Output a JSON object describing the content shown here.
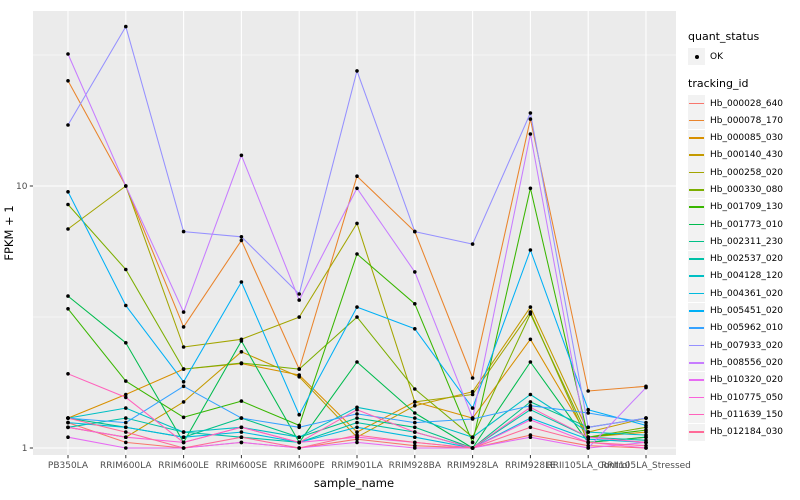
{
  "legend": {
    "quant_status_title": "quant_status",
    "quant_ok_label": "OK",
    "tracking_title": "tracking_id"
  },
  "chart_data": {
    "type": "line",
    "title": "",
    "xlabel": "sample_name",
    "ylabel": "FPKM + 1",
    "y_scale": "log10",
    "ylim": [
      0.94,
      46.6
    ],
    "grid": "on",
    "panel_bg": "#EBEBEB",
    "grid_color": "#FFFFFF",
    "point_color": "#000000",
    "tick_label_color": "#4D4D4D",
    "y_ticks": [
      {
        "label": "1",
        "value": 1
      },
      {
        "label": "10",
        "value": 10
      }
    ],
    "y_minor": [
      3.1623,
      31.623
    ],
    "categories": [
      "PB350LA",
      "RRIM600LA",
      "RRIM600LE",
      "RRIM600SE",
      "RRIM600PE",
      "RRIM901LA",
      "RRIM928BA",
      "RRIM928LA",
      "RRIM928LE",
      "RRII105LA_Control",
      "RRII105LA_Stressed"
    ],
    "series": [
      {
        "name": "Hb_000028_640",
        "color": "#F8766D",
        "values": [
          1.25,
          1.05,
          1.0,
          1.05,
          1.0,
          1.08,
          1.02,
          1.0,
          1.12,
          1.02,
          1.0
        ]
      },
      {
        "name": "Hb_000078_170",
        "color": "#E9842C",
        "values": [
          25.2,
          10.0,
          2.9,
          6.2,
          2.0,
          10.9,
          6.7,
          1.85,
          18.0,
          1.65,
          1.72
        ]
      },
      {
        "name": "Hb_000085_030",
        "color": "#D89000",
        "values": [
          1.3,
          1.6,
          2.0,
          2.1,
          1.9,
          1.15,
          1.5,
          1.3,
          2.6,
          1.1,
          1.15
        ]
      },
      {
        "name": "Hb_000140_430",
        "color": "#C49A00",
        "values": [
          1.2,
          1.1,
          1.5,
          2.33,
          1.87,
          1.1,
          1.45,
          1.64,
          3.45,
          1.15,
          1.3
        ]
      },
      {
        "name": "Hb_000258_020",
        "color": "#A3A500",
        "values": [
          6.85,
          10.0,
          2.43,
          2.6,
          3.16,
          7.2,
          1.5,
          1.6,
          3.3,
          1.05,
          1.1
        ]
      },
      {
        "name": "Hb_000330_080",
        "color": "#7CAE00",
        "values": [
          8.5,
          4.8,
          2.0,
          2.11,
          2.0,
          3.16,
          1.68,
          1.1,
          3.25,
          1.1,
          1.2
        ]
      },
      {
        "name": "Hb_001709_130",
        "color": "#39B600",
        "values": [
          3.4,
          1.8,
          1.31,
          1.51,
          1.22,
          5.5,
          3.55,
          1.05,
          9.8,
          1.1,
          1.17
        ]
      },
      {
        "name": "Hb_001773_010",
        "color": "#00BB4E",
        "values": [
          3.8,
          2.52,
          1.05,
          2.56,
          1.05,
          2.13,
          1.36,
          1.0,
          2.13,
          1.05,
          1.1
        ]
      },
      {
        "name": "Hb_002311_230",
        "color": "#00C087",
        "values": [
          1.3,
          1.2,
          1.1,
          1.3,
          1.1,
          1.3,
          1.2,
          1.0,
          1.5,
          1.2,
          1.3
        ]
      },
      {
        "name": "Hb_002537_020",
        "color": "#00C1A7",
        "values": [
          1.2,
          1.3,
          1.15,
          1.1,
          1.05,
          1.25,
          1.15,
          1.0,
          1.4,
          1.1,
          1.07
        ]
      },
      {
        "name": "Hb_004128_120",
        "color": "#00BFC4",
        "values": [
          1.3,
          1.42,
          1.15,
          1.2,
          1.1,
          1.43,
          1.3,
          1.1,
          1.6,
          1.15,
          1.12
        ]
      },
      {
        "name": "Hb_004361_020",
        "color": "#00BADE",
        "values": [
          1.25,
          1.2,
          1.1,
          1.15,
          1.05,
          1.2,
          1.1,
          1.0,
          1.3,
          1.08,
          1.05
        ]
      },
      {
        "name": "Hb_005451_020",
        "color": "#00B0F6",
        "values": [
          9.5,
          3.5,
          1.79,
          4.3,
          1.34,
          3.45,
          2.85,
          1.42,
          5.7,
          1.4,
          1.22
        ]
      },
      {
        "name": "Hb_005962_010",
        "color": "#35A2FF",
        "values": [
          1.3,
          1.25,
          1.72,
          1.3,
          1.2,
          1.35,
          1.25,
          1.29,
          1.45,
          1.36,
          1.25
        ]
      },
      {
        "name": "Hb_007933_020",
        "color": "#9590FF",
        "values": [
          17.1,
          40.6,
          6.7,
          6.4,
          3.87,
          27.5,
          6.7,
          6.0,
          19.0,
          1.2,
          1.3
        ]
      },
      {
        "name": "Hb_008556_020",
        "color": "#C77CFF",
        "values": [
          31.9,
          10.0,
          3.3,
          13.1,
          3.67,
          9.8,
          4.7,
          1.3,
          15.8,
          1.0,
          1.7
        ]
      },
      {
        "name": "Hb_010320_020",
        "color": "#E76BF3",
        "values": [
          1.1,
          1.0,
          1.0,
          1.05,
          1.0,
          1.05,
          1.0,
          1.0,
          1.1,
          1.0,
          1.05
        ]
      },
      {
        "name": "Hb_010775_050",
        "color": "#FA62DB",
        "values": [
          1.2,
          1.1,
          1.05,
          1.2,
          1.05,
          1.1,
          1.05,
          1.0,
          1.28,
          1.05,
          1.0
        ]
      },
      {
        "name": "Hb_011639_150",
        "color": "#FF62BC",
        "values": [
          1.92,
          1.56,
          1.05,
          1.2,
          1.05,
          1.4,
          1.15,
          1.0,
          1.43,
          1.1,
          1.05
        ]
      },
      {
        "name": "Hb_012184_030",
        "color": "#FF6A98",
        "values": [
          1.3,
          1.15,
          1.0,
          1.1,
          1.0,
          1.12,
          1.05,
          1.0,
          1.2,
          1.05,
          1.02
        ]
      }
    ]
  }
}
